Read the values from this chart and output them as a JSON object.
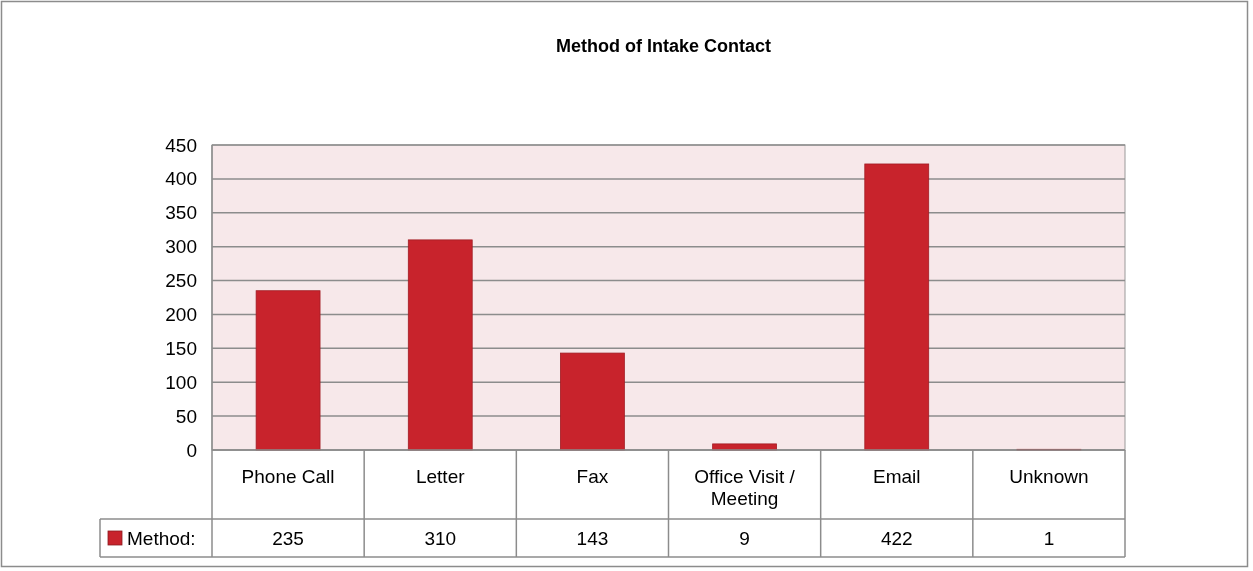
{
  "chart_data": {
    "type": "bar",
    "title": "Method of Intake Contact",
    "categories": [
      "Phone Call",
      "Letter",
      "Fax",
      "Office Visit / Meeting",
      "Email",
      "Unknown"
    ],
    "series": [
      {
        "name": "Method:",
        "color": "#c8232c",
        "values": [
          235,
          310,
          143,
          9,
          422,
          1
        ]
      }
    ],
    "ylim": [
      0,
      450
    ],
    "yticks": [
      0,
      50,
      100,
      150,
      200,
      250,
      300,
      350,
      400,
      450
    ],
    "grid": "y",
    "data_labels": true,
    "legend": "bottom left"
  }
}
